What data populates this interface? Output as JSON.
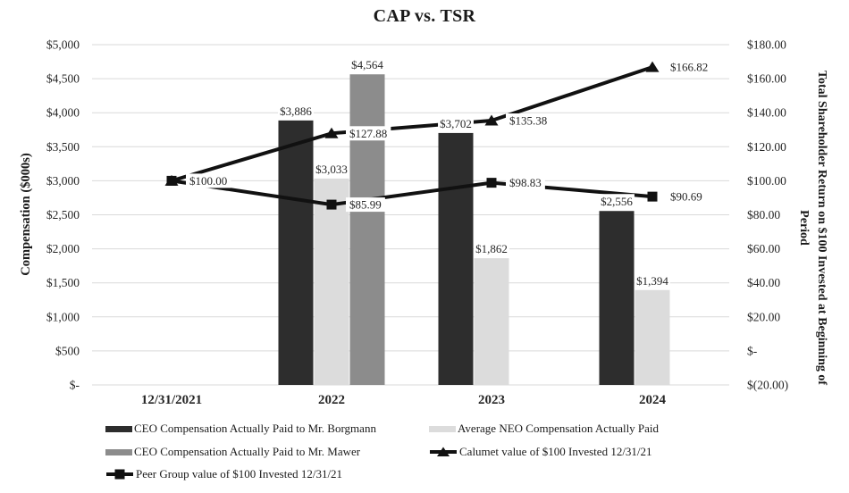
{
  "chart_data": {
    "type": "combo-bar-line",
    "title": "CAP vs. TSR",
    "categories": [
      "12/31/2021",
      "2022",
      "2023",
      "2024"
    ],
    "left_axis": {
      "title": "Compensation ($000s)",
      "min": 0,
      "max": 5000,
      "ticks": [
        "$5,000",
        "$4,500",
        "$4,000",
        "$3,500",
        "$3,000",
        "$2,500",
        "$2,000",
        "$1,500",
        "$1,000",
        "$500",
        "$-"
      ]
    },
    "right_axis": {
      "title": "Total Shareholder Return on $100 Invested at Beginning of Period",
      "title_lines": [
        "Total Shareholder Return on $100 Invested at Beginning of",
        "Period"
      ],
      "min": -20,
      "max": 180,
      "ticks": [
        "$180.00",
        "$160.00",
        "$140.00",
        "$120.00",
        "$100.00",
        "$80.00",
        "$60.00",
        "$40.00",
        "$20.00",
        "$-",
        "$(20.00)"
      ]
    },
    "grid_color": "#d9d9d9",
    "line_color": "#111111",
    "bar_series": [
      {
        "name": "CEO Compensation Actually Paid to Mr. Borgmann",
        "color": "#2d2d2d",
        "values": [
          null,
          3886,
          3702,
          2556
        ],
        "labels": [
          null,
          "$3,886",
          "$3,702",
          "$2,556"
        ]
      },
      {
        "name": "Average NEO Compensation Actually Paid",
        "color": "#dcdcdc",
        "values": [
          null,
          3033,
          1862,
          1394
        ],
        "labels": [
          null,
          "$3,033",
          "$1,862",
          "$1,394"
        ]
      },
      {
        "name": "CEO Compensation Actually Paid to Mr. Mawer",
        "color": "#8c8c8c",
        "values": [
          null,
          4564,
          null,
          null
        ],
        "labels": [
          null,
          "$4,564",
          null,
          null
        ]
      }
    ],
    "line_series": [
      {
        "name": "Calumet value of $100 Invested 12/31/21",
        "marker": "triangle",
        "values": [
          100,
          127.88,
          135.38,
          166.82
        ],
        "labels": [
          "$100.00",
          "$127.88",
          "$135.38",
          "$166.82"
        ],
        "label_shown": [
          false,
          true,
          true,
          true
        ]
      },
      {
        "name": "Peer Group value of $100 Invested 12/31/21",
        "marker": "square",
        "values": [
          100,
          85.99,
          98.83,
          90.69
        ],
        "labels": [
          "$100.00",
          "$85.99",
          "$98.83",
          "$90.69"
        ],
        "label_shown": [
          true,
          true,
          true,
          true
        ]
      }
    ],
    "legend": [
      {
        "label": "CEO Compensation Actually Paid to Mr. Borgmann",
        "swatch": "bar",
        "color": "#2d2d2d"
      },
      {
        "label": "Average NEO Compensation Actually Paid",
        "swatch": "bar",
        "color": "#dcdcdc"
      },
      {
        "label": "CEO Compensation Actually Paid to Mr. Mawer",
        "swatch": "bar",
        "color": "#8c8c8c"
      },
      {
        "label": "Calumet value of $100 Invested 12/31/21",
        "swatch": "line",
        "marker": "triangle",
        "color": "#111111"
      },
      {
        "label": "Peer Group value of $100 Invested 12/31/21",
        "swatch": "line",
        "marker": "square",
        "color": "#111111"
      }
    ]
  }
}
